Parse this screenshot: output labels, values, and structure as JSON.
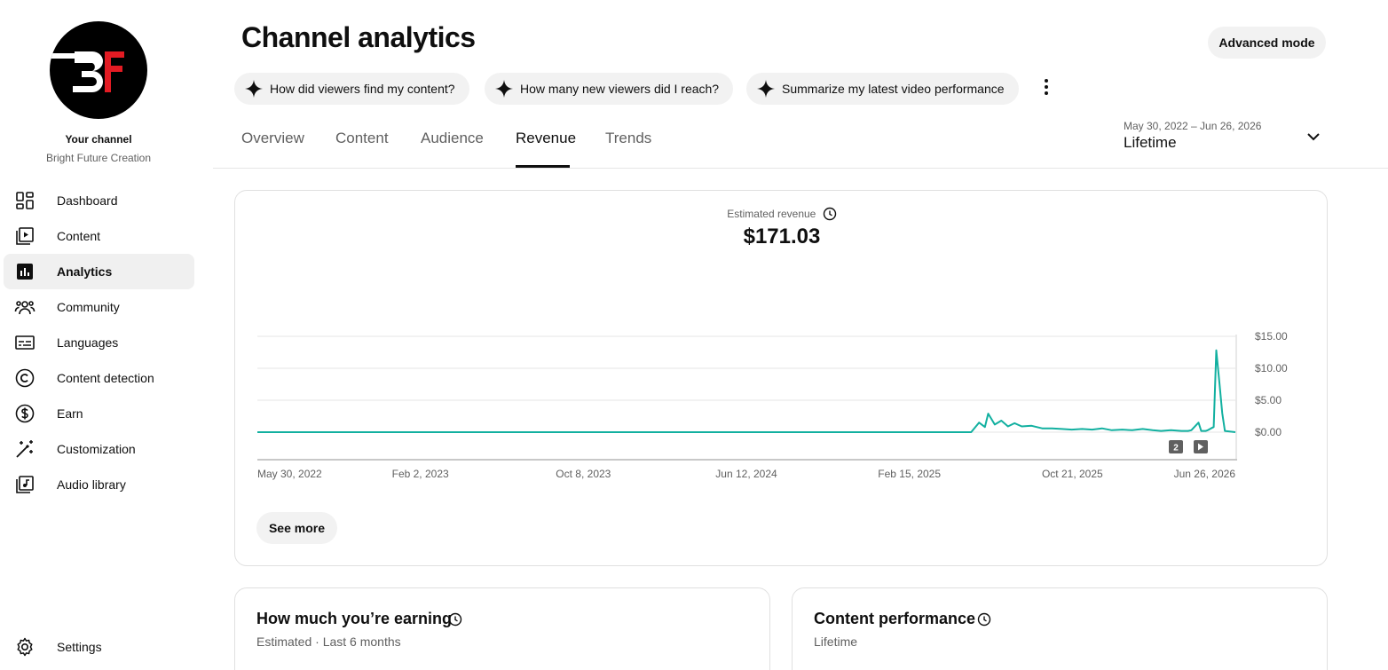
{
  "sidebar": {
    "channel_title": "Your channel",
    "channel_name": "Bright Future Creation",
    "logo_text": "BF",
    "items": [
      {
        "label": "Dashboard",
        "icon": "dashboard-icon"
      },
      {
        "label": "Content",
        "icon": "content-icon"
      },
      {
        "label": "Analytics",
        "icon": "analytics-icon",
        "active": true
      },
      {
        "label": "Community",
        "icon": "community-icon"
      },
      {
        "label": "Languages",
        "icon": "subtitles-icon"
      },
      {
        "label": "Content detection",
        "icon": "copyright-icon"
      },
      {
        "label": "Earn",
        "icon": "dollar-icon"
      },
      {
        "label": "Customization",
        "icon": "magic-wand-icon"
      },
      {
        "label": "Audio library",
        "icon": "audio-library-icon"
      }
    ],
    "settings_label": "Settings"
  },
  "header": {
    "title": "Channel analytics",
    "advanced_mode": "Advanced mode",
    "chips": [
      "How did viewers find my content?",
      "How many new viewers did I reach?",
      "Summarize my latest video performance"
    ],
    "tabs": [
      "Overview",
      "Content",
      "Audience",
      "Revenue",
      "Trends"
    ],
    "active_tab": "Revenue",
    "date_range": "May 30, 2022 – Jun 26, 2026",
    "date_value": "Lifetime"
  },
  "revenue_card": {
    "metric_label": "Estimated revenue",
    "metric_value": "$171.03",
    "see_more": "See more",
    "badge_count": "2"
  },
  "chart_data": {
    "type": "line",
    "x_ticks": [
      "May 30, 2022",
      "Feb 2, 2023",
      "Oct 8, 2023",
      "Jun 12, 2024",
      "Feb 15, 2025",
      "Oct 21, 2025",
      "Jun 26, 2026"
    ],
    "y_ticks": [
      "$15.00",
      "$10.00",
      "$5.00",
      "$0.00"
    ],
    "ylim": [
      0,
      15
    ],
    "grid": true,
    "color": "#12b0a0",
    "x_range": [
      "2022-05-30",
      "2026-06-26"
    ],
    "series": [
      {
        "x": [
          "2022-05-30",
          "2025-05-20",
          "2025-06-01",
          "2025-06-10",
          "2025-06-15",
          "2025-06-25",
          "2025-07-05",
          "2025-07-15",
          "2025-07-25",
          "2025-08-05",
          "2025-08-20",
          "2025-09-05",
          "2025-09-20",
          "2025-10-05",
          "2025-10-20",
          "2025-11-05",
          "2025-11-20",
          "2025-12-05",
          "2025-12-20",
          "2026-01-05",
          "2026-01-20",
          "2026-02-05",
          "2026-02-20",
          "2026-03-05",
          "2026-03-20",
          "2026-04-05",
          "2026-04-15",
          "2026-04-20",
          "2026-05-01",
          "2026-05-05",
          "2026-05-12",
          "2026-05-15",
          "2026-05-20",
          "2026-05-24",
          "2026-05-28",
          "2026-06-02",
          "2026-06-06",
          "2026-06-10",
          "2026-06-26"
        ],
        "values": [
          0,
          0,
          1.5,
          0.8,
          2.9,
          1.2,
          1.8,
          0.9,
          1.4,
          0.9,
          1.0,
          0.6,
          0.6,
          0.5,
          0.4,
          0.5,
          0.4,
          0.6,
          0.3,
          0.4,
          0.3,
          0.5,
          0.3,
          0.2,
          0.3,
          0.2,
          0.2,
          0.3,
          1.5,
          0.2,
          0.2,
          0.3,
          0.6,
          0.8,
          12.8,
          7.5,
          3.0,
          0.2,
          0
        ]
      }
    ]
  },
  "earning_card": {
    "title": "How much you’re earning",
    "subtitle": "Estimated · Last 6 months"
  },
  "performance_card": {
    "title": "Content performance",
    "subtitle": "Lifetime"
  }
}
